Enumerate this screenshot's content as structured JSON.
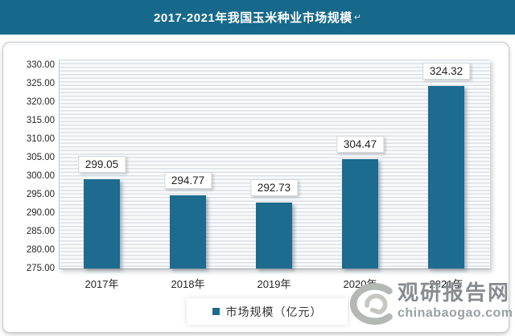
{
  "header": {
    "title": "2017-2021年我国玉米种业市场规模",
    "return_mark": "↵"
  },
  "chart_data": {
    "type": "bar",
    "title": "2017-2021年我国玉米种业市场规模",
    "categories": [
      "2017年",
      "2018年",
      "2019年",
      "2020年",
      "2021年"
    ],
    "values": [
      299.05,
      294.77,
      292.73,
      304.47,
      324.32
    ],
    "data_labels": [
      "299.05",
      "294.77",
      "292.73",
      "304.47",
      "324.32"
    ],
    "series_name": "市场规模（亿元）",
    "xlabel": "",
    "ylabel": "",
    "ylim": [
      275,
      330
    ],
    "ytick_step": 5,
    "ytick_labels": [
      "330.00",
      "325.00",
      "320.00",
      "315.00",
      "310.00",
      "305.00",
      "300.00",
      "295.00",
      "290.00",
      "285.00",
      "280.00",
      "275.00"
    ],
    "legend_position": "bottom",
    "grid": "horizontal-stripes"
  },
  "legend": {
    "label": "市场规模（亿元）"
  },
  "watermark": {
    "name": "观研报告网",
    "domain": "chinabaogao.com"
  },
  "colors": {
    "header_bg": "#16698a",
    "bar": "#1d6b8e",
    "legend_marker": "#1d6b8e",
    "stripe": "#dde2e7",
    "axis_line": "#a6acb2",
    "watermark_gray": "#888c90"
  }
}
